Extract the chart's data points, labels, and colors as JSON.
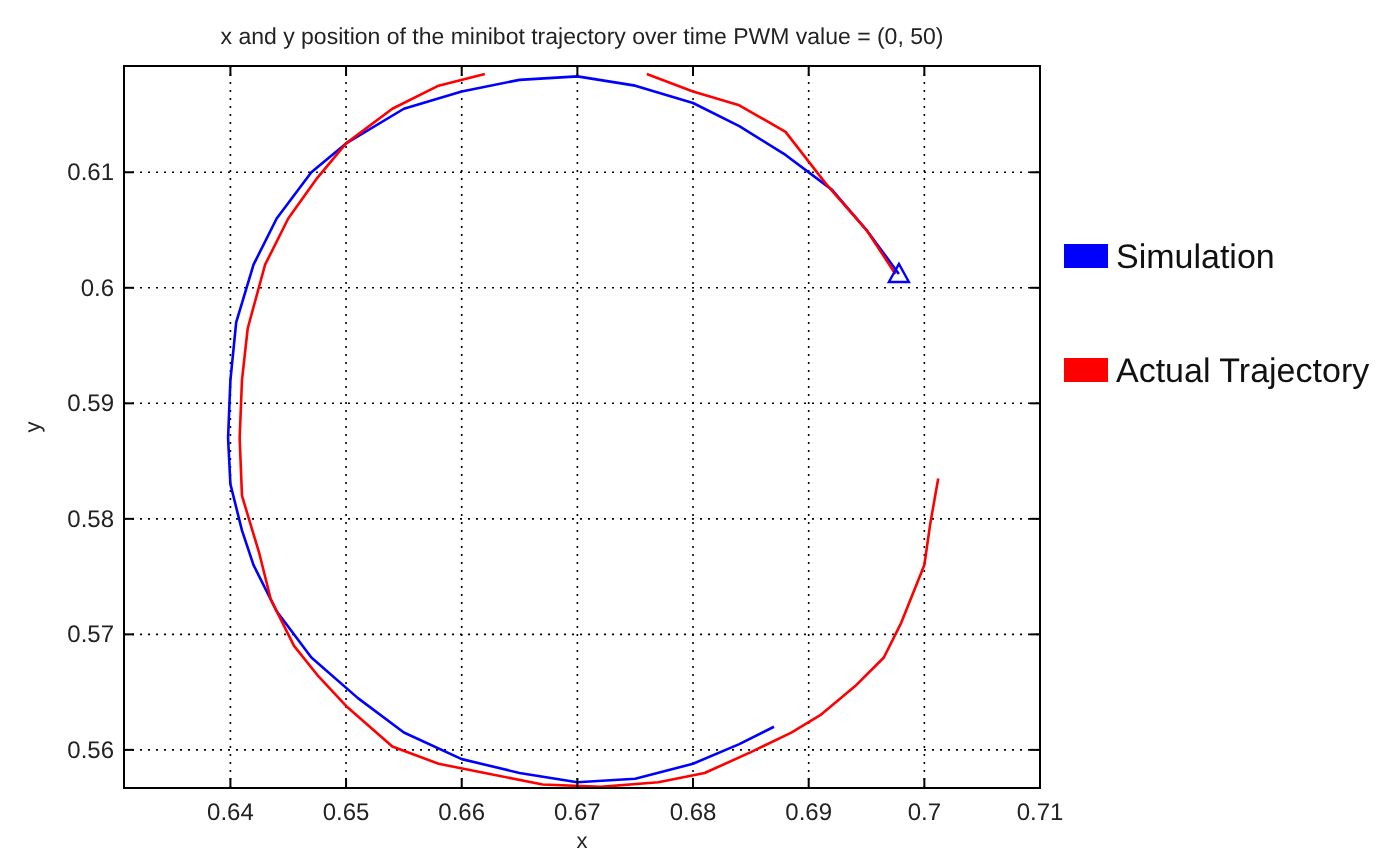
{
  "chart_data": {
    "type": "line",
    "title": "x and y position of the minibot trajectory over time PWM value = (0, 50)",
    "xlabel": "x",
    "ylabel": "y",
    "xlim": [
      0.6308,
      0.71
    ],
    "ylim": [
      0.5567,
      0.6192
    ],
    "xticks": [
      0.64,
      0.65,
      0.66,
      0.67,
      0.68,
      0.69,
      0.7,
      0.71
    ],
    "yticks": [
      0.56,
      0.57,
      0.58,
      0.59,
      0.6,
      0.61
    ],
    "grid": true,
    "legend": "right",
    "line_style": "solid",
    "series": [
      {
        "name": "Simulation",
        "color": "#0000ff",
        "x": [
          0.6978,
          0.695,
          0.692,
          0.688,
          0.684,
          0.68,
          0.675,
          0.67,
          0.665,
          0.66,
          0.655,
          0.65,
          0.647,
          0.644,
          0.642,
          0.6405,
          0.64,
          0.6398,
          0.64,
          0.641,
          0.642,
          0.644,
          0.647,
          0.651,
          0.655,
          0.66,
          0.665,
          0.67,
          0.675,
          0.68,
          0.684,
          0.687
        ],
        "values": [
          0.6012,
          0.605,
          0.6085,
          0.6115,
          0.614,
          0.616,
          0.6175,
          0.6183,
          0.618,
          0.617,
          0.6155,
          0.6125,
          0.61,
          0.606,
          0.602,
          0.597,
          0.592,
          0.587,
          0.583,
          0.579,
          0.576,
          0.572,
          0.568,
          0.5645,
          0.5615,
          0.5592,
          0.558,
          0.5572,
          0.5575,
          0.5588,
          0.5605,
          0.562
        ]
      },
      {
        "name": "Actual Trajectory",
        "color": "#ff0000",
        "x": [
          0.6975,
          0.695,
          0.6915,
          0.688,
          0.684,
          0.68,
          0.676,
          0.675,
          0.665,
          0.662,
          0.658,
          0.654,
          0.65,
          0.6475,
          0.645,
          0.643,
          0.6415,
          0.641,
          0.6408,
          0.641,
          0.6425,
          0.6435,
          0.6455,
          0.6475,
          0.65,
          0.654,
          0.658,
          0.662,
          0.667,
          0.672,
          0.677,
          0.681,
          0.685,
          0.6885,
          0.691,
          0.694,
          0.6965,
          0.698,
          0.7,
          0.7005,
          0.7012
        ],
        "values": [
          0.6012,
          0.605,
          0.609,
          0.6135,
          0.6158,
          0.617,
          0.6185,
          null,
          null,
          0.6185,
          0.6175,
          0.6155,
          0.6125,
          0.6095,
          0.606,
          0.602,
          0.5965,
          0.592,
          0.587,
          0.582,
          0.577,
          0.573,
          0.569,
          0.5665,
          0.5638,
          0.5603,
          0.5588,
          0.558,
          0.557,
          0.5568,
          0.5572,
          0.558,
          0.5598,
          0.5615,
          0.563,
          0.5655,
          0.568,
          0.571,
          0.576,
          0.5795,
          0.5835
        ]
      },
      {
        "type": "scatter",
        "marker": "triangle",
        "color": "#0000ff",
        "x": [
          0.6978
        ],
        "values": [
          0.6012
        ]
      }
    ]
  }
}
